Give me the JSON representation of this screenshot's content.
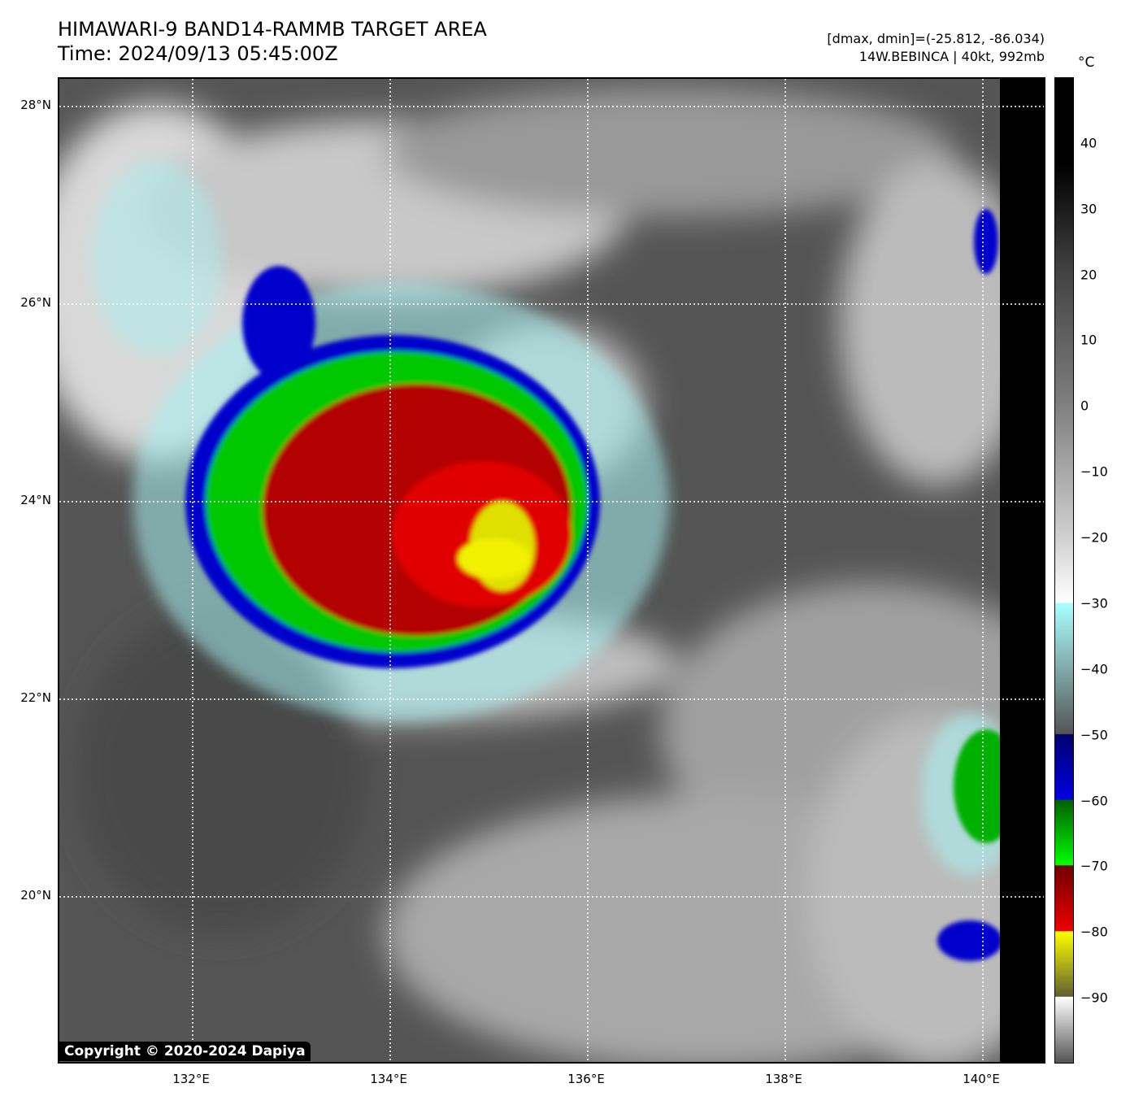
{
  "header": {
    "title": "HIMAWARI-9 BAND14-RAMMB TARGET AREA",
    "time": "Time: 2024/09/13 05:45:00Z",
    "range": "[dmax, dmin]=(-25.812, -86.034)",
    "storm": "14W.BEBINCA | 40kt, 992mb"
  },
  "map": {
    "lat_labels": [
      {
        "lat": 28,
        "label": "28°N"
      },
      {
        "lat": 26,
        "label": "26°N"
      },
      {
        "lat": 24,
        "label": "24°N"
      },
      {
        "lat": 22,
        "label": "22°N"
      },
      {
        "lat": 20,
        "label": "20°N"
      }
    ],
    "lon_labels": [
      {
        "lon": 132,
        "label": "132°E"
      },
      {
        "lon": 134,
        "label": "134°E"
      },
      {
        "lon": 136,
        "label": "136°E"
      },
      {
        "lon": 138,
        "label": "138°E"
      },
      {
        "lon": 140,
        "label": "140°E"
      }
    ],
    "copyright": "Copyright © 2020-2024 Dapiya"
  },
  "colorbar": {
    "unit": "°C",
    "range": [
      -100,
      50
    ],
    "ticks": [
      "40",
      "30",
      "20",
      "10",
      "0",
      "−10",
      "−20",
      "−30",
      "−40",
      "−50",
      "−60",
      "−70",
      "−80",
      "−90"
    ],
    "tick_values": [
      40,
      30,
      20,
      10,
      0,
      -10,
      -20,
      -30,
      -40,
      -50,
      -60,
      -70,
      -80,
      -90
    ]
  }
}
